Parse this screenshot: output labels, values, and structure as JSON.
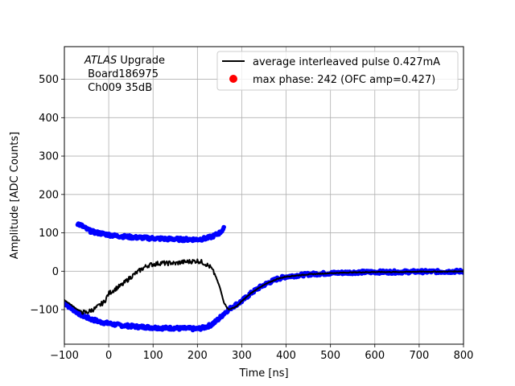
{
  "chart_data": {
    "type": "line",
    "xlabel": "Time [ns]",
    "ylabel": "Amplitude [ADC Counts]",
    "xlim": [
      -100,
      800
    ],
    "ylim": [
      -190,
      585
    ],
    "x_ticks": [
      -100,
      0,
      100,
      200,
      300,
      400,
      500,
      600,
      700,
      800
    ],
    "y_ticks": [
      -100,
      0,
      100,
      200,
      300,
      400,
      500
    ],
    "grid": true,
    "legend_position": "top-right",
    "annotation": {
      "line1_italic": "ATLAS",
      "line1_rest": " Upgrade",
      "line2": " Board186975",
      "line3": " Ch009 35dB"
    },
    "series": [
      {
        "name": "average interleaved pulse 0.427mA",
        "color": "#000000",
        "style": "line",
        "x": [
          -100,
          -90,
          -80,
          -70,
          -60,
          -50,
          -40,
          -30,
          -20,
          -10,
          0,
          10,
          20,
          30,
          40,
          50,
          60,
          70,
          80,
          90,
          100,
          110,
          120,
          130,
          140,
          150,
          160,
          170,
          180,
          190,
          200,
          210,
          220,
          230,
          240,
          250,
          260,
          270,
          280,
          290,
          300,
          320,
          340,
          360,
          380,
          400,
          450,
          500,
          550,
          600,
          650,
          700,
          750,
          800
        ],
        "y": [
          -75,
          -83,
          -92,
          -100,
          -106,
          -108,
          -102,
          -97,
          -88,
          -80,
          -58,
          -50,
          -42,
          -36,
          -25,
          -15,
          -6,
          2,
          10,
          16,
          18,
          20,
          22,
          20,
          22,
          20,
          23,
          24,
          25,
          26,
          27,
          24,
          18,
          10,
          -10,
          -40,
          -82,
          -100,
          -96,
          -90,
          -78,
          -58,
          -42,
          -30,
          -20,
          -14,
          -8,
          -5,
          -3,
          -2,
          -2,
          -1,
          -1,
          0
        ]
      },
      {
        "name": "",
        "color": "#0000ff",
        "style": "points",
        "x": [
          -100,
          -90,
          -80,
          -70,
          -60,
          -50,
          -40,
          -30,
          -20,
          -10,
          0,
          10,
          20,
          30,
          40,
          50,
          60,
          70,
          80,
          90,
          100,
          110,
          120,
          130,
          140,
          150,
          160,
          170,
          180,
          190,
          200,
          210,
          220,
          230,
          240,
          250,
          260,
          270,
          280,
          290,
          300,
          320,
          340,
          360,
          380,
          400,
          450,
          500,
          550,
          600,
          650,
          700,
          750,
          800
        ],
        "y": [
          -82,
          -92,
          -100,
          -108,
          -115,
          -120,
          -125,
          -128,
          -132,
          -134,
          -136,
          -138,
          -140,
          -141,
          -142,
          -143,
          -144,
          -145,
          -145,
          -146,
          -147,
          -147,
          -148,
          -148,
          -148,
          -148,
          -149,
          -149,
          -149,
          -150,
          -150,
          -148,
          -145,
          -140,
          -132,
          -122,
          -110,
          -100,
          -92,
          -85,
          -78,
          -58,
          -42,
          -30,
          -20,
          -14,
          -8,
          -5,
          -3,
          -2,
          -2,
          -1,
          -1,
          0
        ]
      },
      {
        "name": "",
        "color": "#0000ff",
        "style": "points",
        "x": [
          -70,
          -60,
          -50,
          -40,
          -30,
          -20,
          -10,
          0,
          10,
          20,
          30,
          40,
          50,
          60,
          70,
          80,
          90,
          100,
          110,
          120,
          130,
          140,
          150,
          160,
          170,
          180,
          190,
          200,
          210,
          220,
          230,
          240,
          250,
          260
        ],
        "y": [
          124,
          118,
          110,
          104,
          101,
          99,
          97,
          95,
          93,
          92,
          91,
          90,
          89,
          88,
          88,
          87,
          86,
          86,
          85,
          85,
          84,
          84,
          84,
          83,
          83,
          83,
          83,
          83,
          84,
          86,
          89,
          94,
          100,
          112
        ]
      },
      {
        "name": "max phase: 242 (OFC amp=0.427)",
        "color": "#ff0000",
        "style": "marker",
        "x": [],
        "y": []
      }
    ]
  }
}
